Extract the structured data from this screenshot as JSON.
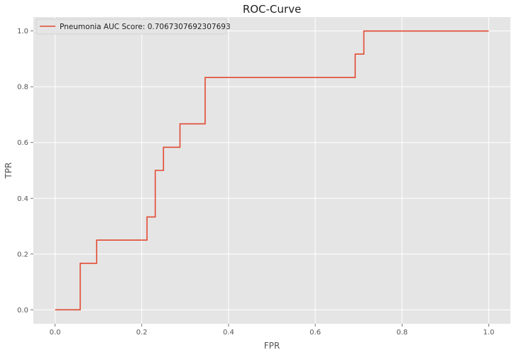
{
  "chart_data": {
    "type": "line",
    "title": "ROC-Curve",
    "xlabel": "FPR",
    "ylabel": "TPR",
    "xlim": [
      -0.05,
      1.05
    ],
    "ylim": [
      -0.05,
      1.05
    ],
    "x_ticks": [
      "0.0",
      "0.2",
      "0.4",
      "0.6",
      "0.8",
      "1.0"
    ],
    "y_ticks": [
      "0.0",
      "0.2",
      "0.4",
      "0.6",
      "0.8",
      "1.0"
    ],
    "grid": true,
    "legend_position": "top-left",
    "series": [
      {
        "name": "Pneumonia AUC Score: 0.7067307692307693",
        "color": "#E24A33",
        "x": [
          0.0,
          0.058,
          0.058,
          0.096,
          0.096,
          0.212,
          0.212,
          0.231,
          0.231,
          0.25,
          0.25,
          0.288,
          0.288,
          0.346,
          0.346,
          0.692,
          0.692,
          0.712,
          0.712,
          1.0
        ],
        "y": [
          0.0,
          0.0,
          0.167,
          0.167,
          0.25,
          0.25,
          0.333,
          0.333,
          0.5,
          0.5,
          0.583,
          0.583,
          0.667,
          0.667,
          0.833,
          0.833,
          0.917,
          0.917,
          1.0,
          1.0
        ]
      }
    ]
  }
}
